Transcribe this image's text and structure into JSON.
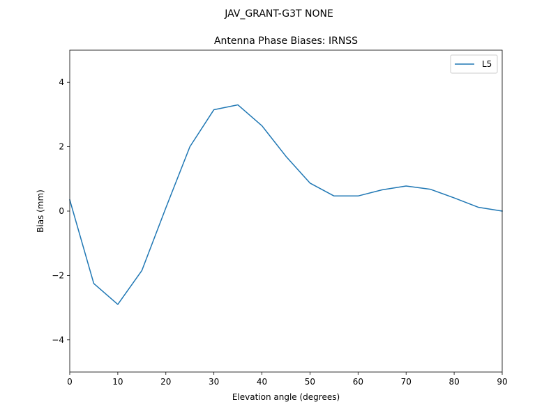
{
  "chart_data": {
    "type": "line",
    "suptitle": "JAV_GRANT-G3T   NONE",
    "title": "Antenna Phase Biases: IRNSS",
    "xlabel": "Elevation angle (degrees)",
    "ylabel": "Bias (mm)",
    "xlim": [
      0,
      90
    ],
    "ylim": [
      -5,
      5
    ],
    "xticks": [
      0,
      10,
      20,
      30,
      40,
      50,
      60,
      70,
      80,
      90
    ],
    "xtick_labels": [
      "0",
      "10",
      "20",
      "30",
      "40",
      "50",
      "60",
      "70",
      "80",
      "90"
    ],
    "yticks": [
      -4,
      -2,
      0,
      2,
      4
    ],
    "ytick_labels": [
      "−4",
      "−2",
      "0",
      "2",
      "4"
    ],
    "grid": false,
    "legend_position": "top-right",
    "series": [
      {
        "name": "L5",
        "color": "#1f77b4",
        "x": [
          0,
          5,
          10,
          15,
          20,
          25,
          30,
          35,
          40,
          45,
          50,
          55,
          60,
          65,
          70,
          75,
          80,
          85,
          90
        ],
        "y": [
          0.35,
          -2.25,
          -2.9,
          -1.85,
          0.1,
          2.0,
          3.15,
          3.3,
          2.65,
          1.7,
          0.87,
          0.47,
          0.47,
          0.66,
          0.78,
          0.68,
          0.41,
          0.12,
          0.0
        ]
      }
    ]
  }
}
